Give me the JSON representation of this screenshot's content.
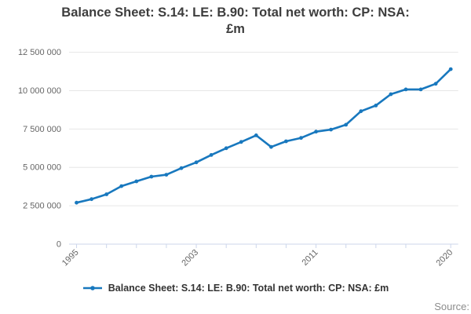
{
  "title": {
    "full": "Balance Sheet: S.14: LE: B.90: Total net worth: CP: NSA: £m",
    "lines": [
      "Balance Sheet: S.14: LE: B.90: Total net worth: CP: NSA:",
      "£m"
    ]
  },
  "legend": {
    "label": "Balance Sheet: S.14: LE: B.90: Total net worth: CP: NSA: £m"
  },
  "source": {
    "label": "Source:"
  },
  "colors": {
    "line": "#1878be",
    "grid": "#e6e6e6",
    "axis": "#ccd6eb",
    "tick_label": "#666666",
    "title_text": "#3d3d3d",
    "legend_text": "#333333",
    "source_text": "#8c8c8c"
  },
  "chart_data": {
    "type": "line",
    "title": "Balance Sheet: S.14: LE: B.90: Total net worth: CP: NSA: £m",
    "series_name": "Balance Sheet: S.14: LE: B.90: Total net worth: CP: NSA: £m",
    "xlabel": "",
    "ylabel": "",
    "grid": "horizontal",
    "legend_position": "bottom",
    "xlim": [
      1994.5,
      2020.5
    ],
    "ylim": [
      0,
      12500000
    ],
    "x": [
      1995,
      1996,
      1997,
      1998,
      1999,
      2000,
      2001,
      2002,
      2003,
      2004,
      2005,
      2006,
      2007,
      2008,
      2009,
      2010,
      2011,
      2012,
      2013,
      2014,
      2015,
      2016,
      2017,
      2018,
      2019,
      2020
    ],
    "values": [
      2700000,
      2930000,
      3250000,
      3780000,
      4090000,
      4400000,
      4520000,
      4950000,
      5330000,
      5810000,
      6250000,
      6660000,
      7090000,
      6330000,
      6700000,
      6920000,
      7330000,
      7460000,
      7780000,
      8660000,
      9030000,
      9770000,
      10080000,
      10080000,
      10450000,
      11400000
    ],
    "yticks": [
      {
        "value": 0,
        "label": "0"
      },
      {
        "value": 2500000,
        "label": "2 500 000"
      },
      {
        "value": 5000000,
        "label": "5 000 000"
      },
      {
        "value": 7500000,
        "label": "7 500 000"
      },
      {
        "value": 10000000,
        "label": "10 000 000"
      },
      {
        "value": 12500000,
        "label": "12 500 000"
      }
    ],
    "xticks": [
      1995,
      1997,
      1999,
      2001,
      2003,
      2005,
      2007,
      2009,
      2011,
      2013,
      2015,
      2017,
      2020
    ],
    "xtick_labels": [
      {
        "year": 1995,
        "label": "1995"
      },
      {
        "year": 2003,
        "label": "2003"
      },
      {
        "year": 2011,
        "label": "2011"
      },
      {
        "year": 2020,
        "label": "2020"
      }
    ]
  }
}
